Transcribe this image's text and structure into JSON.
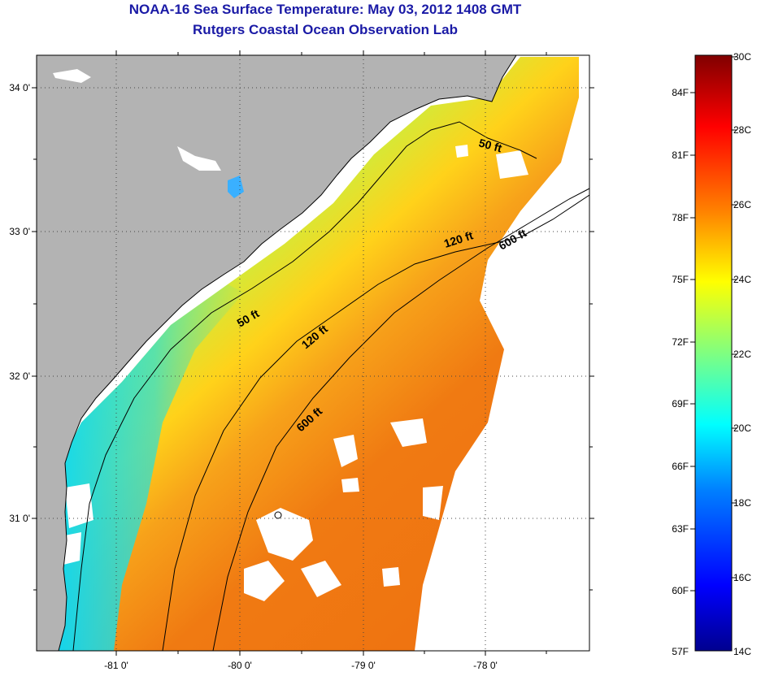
{
  "header": {
    "title": "NOAA-16 Sea Surface Temperature:  May 03, 2012 1408 GMT",
    "subtitle": "Rutgers Coastal Ocean Observation Lab"
  },
  "map": {
    "lat_labels": [
      "34 0'",
      "33 0'",
      "32 0'",
      "31 0'"
    ],
    "lon_labels": [
      "-81 0'",
      "-80 0'",
      "-79 0'",
      "-78 0'"
    ],
    "contour_labels": [
      "50 ft",
      "120 ft",
      "600 ft",
      "50 ft",
      "120 ft",
      "600 ft"
    ],
    "colors": {
      "land": "#b3b3b3",
      "cloud": "#ffffff",
      "cool": "#00bfff",
      "mid": "#c8f040",
      "warm": "#f07a12"
    }
  },
  "colorbar": {
    "fahrenheit_labels": [
      "84F",
      "81F",
      "78F",
      "75F",
      "72F",
      "69F",
      "66F",
      "63F",
      "60F",
      "57F"
    ],
    "celsius_labels": [
      "30C",
      "28C",
      "26C",
      "24C",
      "22C",
      "20C",
      "18C",
      "16C",
      "14C"
    ]
  }
}
